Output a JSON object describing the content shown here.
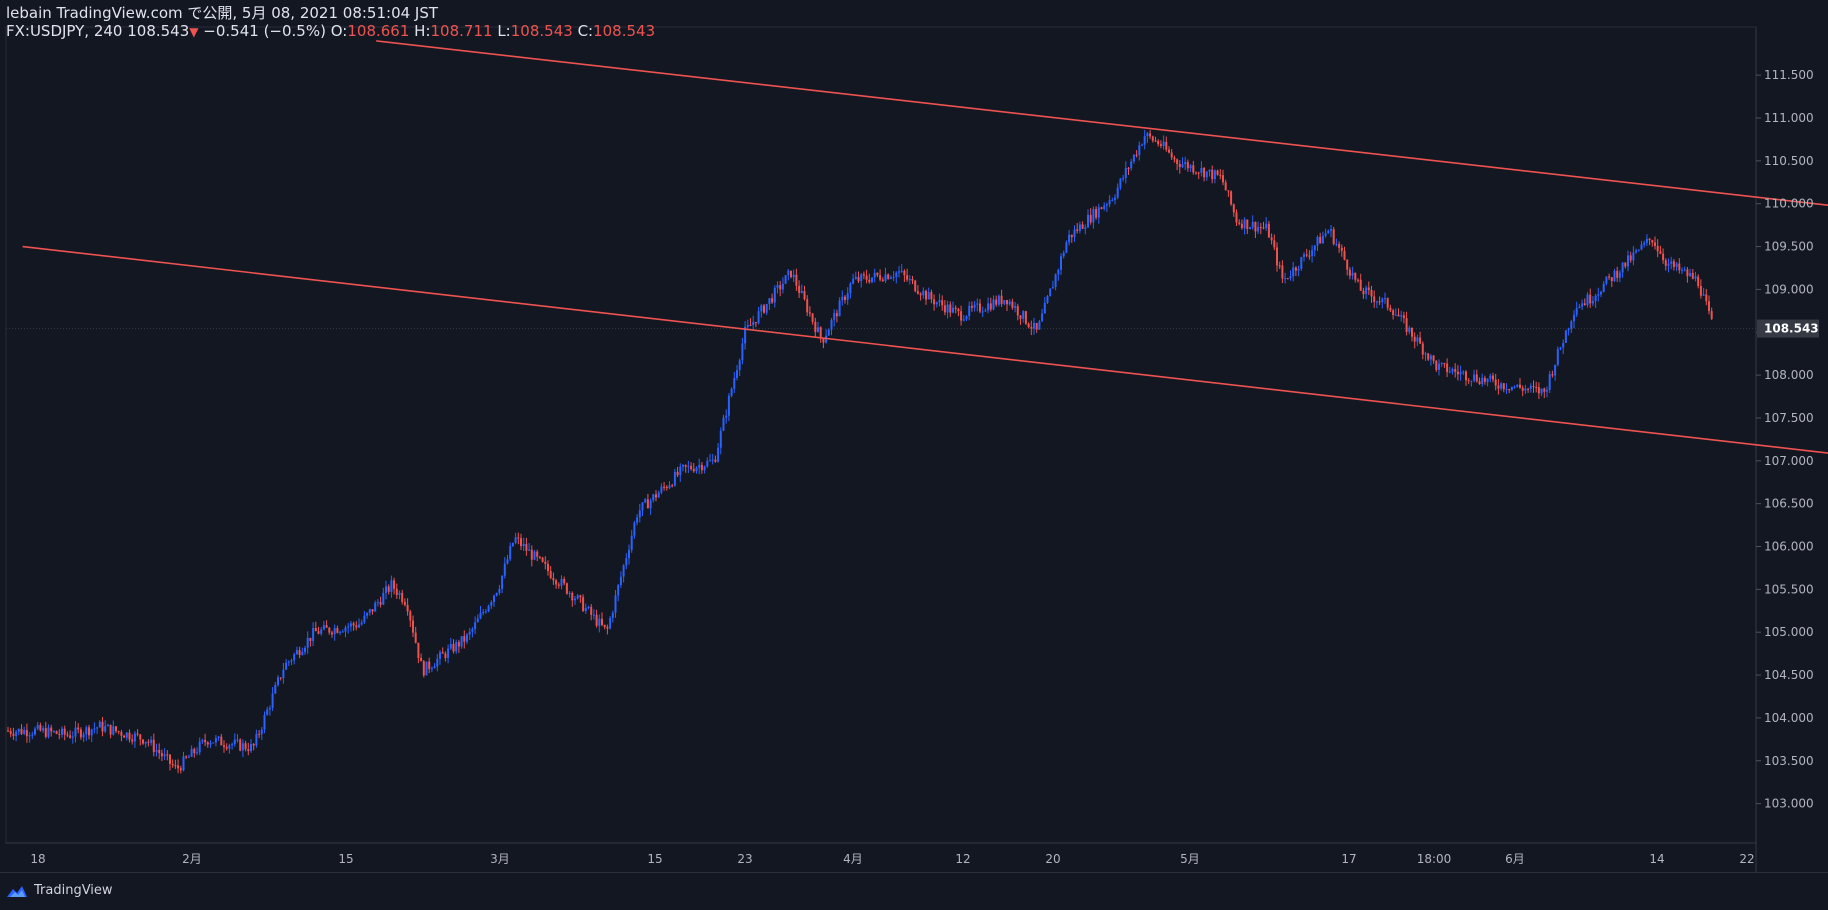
{
  "header": {
    "line1": "lebain TradingView.com で公開, 5月 08, 2021 08:51:04 JST",
    "symbol": "FX:USDJPY, 240 108.543",
    "change_arrow": "▼",
    "change": "−0.541 (−0.5%)",
    "o_label": "O:",
    "o_value": "108.661",
    "h_label": "H:",
    "h_value": "108.711",
    "l_label": "L:",
    "l_value": "108.543",
    "c_label": "C:",
    "c_value": "108.543"
  },
  "footer": {
    "brand": "TradingView",
    "brand_icon": "tradingview-logo-icon"
  },
  "colors": {
    "background": "#131722",
    "up": "#2962ff",
    "down": "#ef5350",
    "trendline": "#ef5350",
    "axis_text": "#b2b5be",
    "price_tag_bg": "#363a45"
  },
  "chart_data": {
    "type": "candlestick",
    "symbol": "FX:USDJPY",
    "interval": "240",
    "current_price": "108.543",
    "ylim": [
      102.6,
      112.0
    ],
    "y_ticks": [
      "111.500",
      "111.000",
      "110.500",
      "110.000",
      "109.500",
      "109.000",
      "108.500",
      "108.000",
      "107.500",
      "107.000",
      "106.500",
      "106.000",
      "105.500",
      "105.000",
      "104.500",
      "104.000",
      "103.500",
      "103.000"
    ],
    "x_ticks": [
      "18",
      "2月",
      "15",
      "3月",
      "15",
      "23",
      "4月",
      "12",
      "20",
      "5月",
      "17",
      "18:00",
      "6月",
      "14",
      "22"
    ],
    "price_path": [
      [
        "2021-01-18",
        103.85
      ],
      [
        "2021-01-20",
        103.8
      ],
      [
        "2021-01-22",
        103.9
      ],
      [
        "2021-01-25",
        103.75
      ],
      [
        "2021-01-27",
        103.4
      ],
      [
        "2021-01-29",
        103.75
      ],
      [
        "2021-02-01",
        103.65
      ],
      [
        "2021-02-03",
        104.6
      ],
      [
        "2021-02-05",
        105.0
      ],
      [
        "2021-02-08",
        105.1
      ],
      [
        "2021-02-10",
        105.55
      ],
      [
        "2021-02-11",
        105.35
      ],
      [
        "2021-02-12",
        104.55
      ],
      [
        "2021-02-15",
        104.95
      ],
      [
        "2021-02-17",
        105.55
      ],
      [
        "2021-02-18",
        106.1
      ],
      [
        "2021-02-22",
        105.4
      ],
      [
        "2021-02-24",
        105.0
      ],
      [
        "2021-02-26",
        106.4
      ],
      [
        "2021-03-01",
        106.9
      ],
      [
        "2021-03-03",
        107.0
      ],
      [
        "2021-03-05",
        108.5
      ],
      [
        "2021-03-08",
        109.2
      ],
      [
        "2021-03-10",
        108.4
      ],
      [
        "2021-03-12",
        109.1
      ],
      [
        "2021-03-15",
        109.2
      ],
      [
        "2021-03-17",
        108.9
      ],
      [
        "2021-03-19",
        108.7
      ],
      [
        "2021-03-22",
        108.9
      ],
      [
        "2021-03-24",
        108.5
      ],
      [
        "2021-03-26",
        109.6
      ],
      [
        "2021-03-29",
        110.1
      ],
      [
        "2021-03-31",
        110.8
      ],
      [
        "2021-04-01",
        110.7
      ],
      [
        "2021-04-02",
        110.5
      ],
      [
        "2021-04-05",
        110.3
      ],
      [
        "2021-04-06",
        109.8
      ],
      [
        "2021-04-08",
        109.7
      ],
      [
        "2021-04-09",
        109.1
      ],
      [
        "2021-04-12",
        109.7
      ],
      [
        "2021-04-14",
        109.0
      ],
      [
        "2021-04-16",
        108.8
      ],
      [
        "2021-04-19",
        108.1
      ],
      [
        "2021-04-21",
        108.0
      ],
      [
        "2021-04-23",
        107.9
      ],
      [
        "2021-04-26",
        107.8
      ],
      [
        "2021-04-28",
        108.8
      ],
      [
        "2021-04-29",
        108.9
      ],
      [
        "2021-05-03",
        109.6
      ],
      [
        "2021-05-04",
        109.3
      ],
      [
        "2021-05-05",
        109.2
      ],
      [
        "2021-05-06",
        109.1
      ],
      [
        "2021-05-07",
        108.543
      ]
    ],
    "trendlines": [
      {
        "name": "upper channel",
        "from": [
          "2021-02-09",
          111.9
        ],
        "to": [
          "2021-06-22",
          109.2
        ]
      },
      {
        "name": "lower channel",
        "from": [
          "2021-01-17",
          109.5
        ],
        "to": [
          "2021-06-22",
          106.3
        ]
      }
    ]
  }
}
